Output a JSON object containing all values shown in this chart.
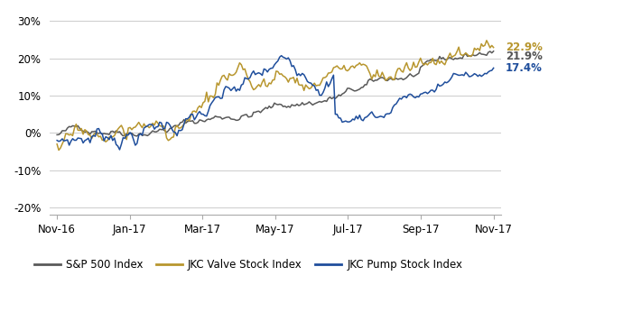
{
  "ylim": [
    -0.22,
    0.32
  ],
  "yticks": [
    -0.2,
    -0.1,
    0.0,
    0.1,
    0.2,
    0.3
  ],
  "ytick_labels": [
    "-20%",
    "-10%",
    "0%",
    "10%",
    "20%",
    "30%"
  ],
  "xtick_labels": [
    "Nov-16",
    "Jan-17",
    "Mar-17",
    "May-17",
    "Jul-17",
    "Sep-17",
    "Nov-17"
  ],
  "xtick_positions": [
    0,
    2,
    4,
    6,
    8,
    10,
    12
  ],
  "sp500_color": "#595959",
  "valve_color": "#B8962E",
  "pump_color": "#1F4E9C",
  "sp500_end_label": "21.9%",
  "valve_end_label": "22.9%",
  "pump_end_label": "17.4%",
  "legend_labels": [
    "S&P 500 Index",
    "JKC Valve Stock Index",
    "JKC Pump Stock Index"
  ],
  "background_color": "#ffffff",
  "grid_color": "#cccccc",
  "n_points": 252
}
